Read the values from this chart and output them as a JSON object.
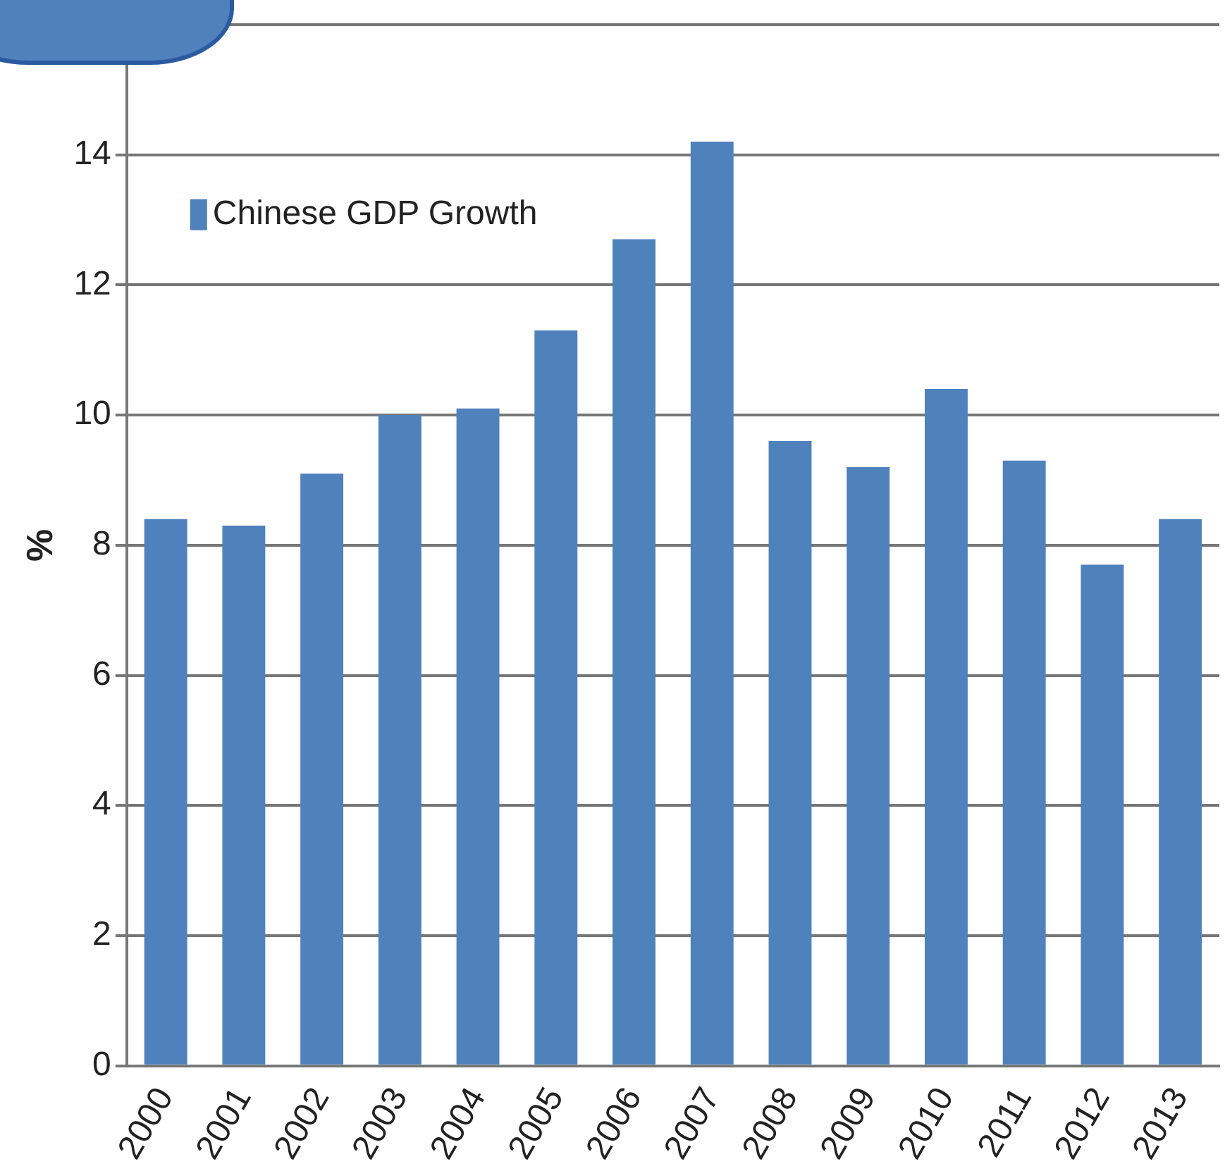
{
  "chart_data": {
    "type": "bar",
    "ylabel": "%",
    "categories": [
      "2000",
      "2001",
      "2002",
      "2003",
      "2004",
      "2005",
      "2006",
      "2007",
      "2008",
      "2009",
      "2010",
      "2011",
      "2012",
      "2013"
    ],
    "series": [
      {
        "name": "Chinese GDP Growth",
        "color": "#4f81bd",
        "values": [
          8.4,
          8.3,
          9.1,
          10.0,
          10.1,
          11.3,
          12.7,
          14.2,
          9.6,
          9.2,
          10.4,
          9.3,
          7.7,
          8.4
        ]
      }
    ],
    "ylim": [
      0,
      16
    ],
    "yticks": [
      0,
      2,
      4,
      6,
      8,
      10,
      12,
      14,
      {
        "value": 16,
        "label": null
      }
    ],
    "grid": "y",
    "legend": "top left"
  }
}
